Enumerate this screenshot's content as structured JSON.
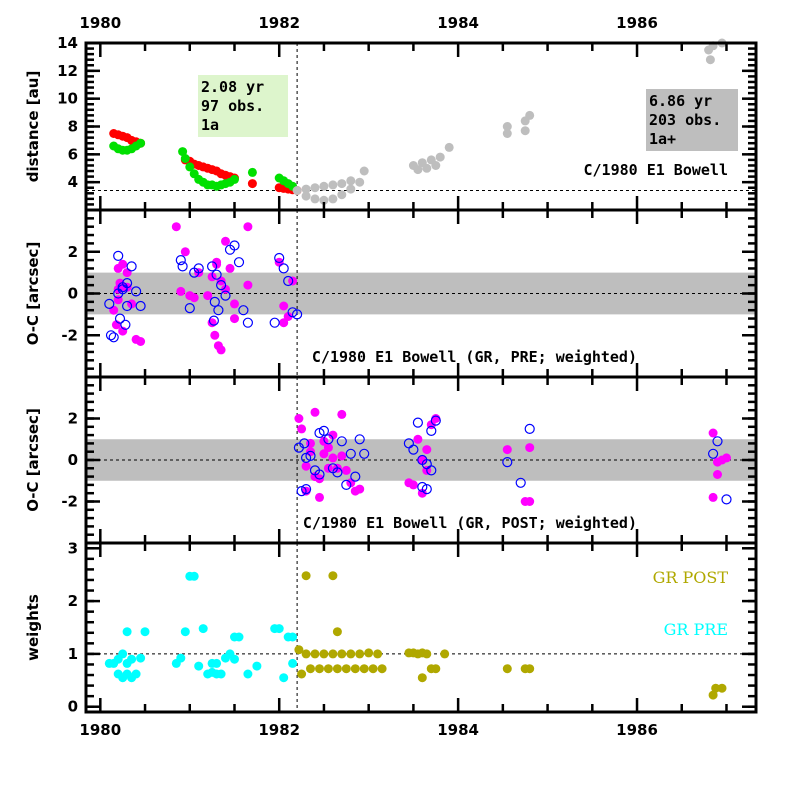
{
  "chart_data": [
    {
      "type": "scatter",
      "panel": "distance",
      "ylabel": "distance [au]",
      "xlim": [
        1979.84,
        1987.33
      ],
      "ylim": [
        2,
        14
      ],
      "x_ticks": [
        "1980",
        "1982",
        "1984",
        "1986"
      ],
      "y_ticks": [
        "4",
        "6",
        "8",
        "10",
        "12",
        "14"
      ],
      "hline": 3.4,
      "vline": 1982.2,
      "annotations": {
        "pre_box": [
          "2.08 yr",
          "97 obs.",
          "1a"
        ],
        "post_box": [
          "6.86 yr",
          "203 obs.",
          "1a+"
        ],
        "title": "C/1980 E1 Bowell"
      },
      "colors": {
        "heliocentric": "#ff0000",
        "geocentric": "#00e000",
        "post": "#bebebe",
        "pre_box": "#ddf5cc",
        "post_box": "#bebebe"
      },
      "series": [
        {
          "name": "heliocentric (pre)",
          "x": [
            1980.15,
            1980.2,
            1980.25,
            1980.3,
            1980.35,
            1980.4,
            1980.45,
            1980.95,
            1981.0,
            1981.05,
            1981.1,
            1981.15,
            1981.2,
            1981.25,
            1981.3,
            1981.35,
            1981.4,
            1981.45,
            1981.5,
            1981.7,
            1982.0,
            1982.05,
            1982.1,
            1982.15,
            1982.2
          ],
          "y": [
            7.5,
            7.4,
            7.3,
            7.2,
            7.0,
            6.9,
            6.8,
            5.6,
            5.5,
            5.3,
            5.2,
            5.1,
            5.0,
            4.9,
            4.8,
            4.6,
            4.5,
            4.4,
            4.3,
            3.9,
            3.6,
            3.55,
            3.5,
            3.45,
            3.4
          ]
        },
        {
          "name": "geocentric (pre)",
          "x": [
            1980.15,
            1980.2,
            1980.25,
            1980.3,
            1980.35,
            1980.4,
            1980.45,
            1980.92,
            1980.95,
            1981.0,
            1981.05,
            1981.1,
            1981.15,
            1981.2,
            1981.25,
            1981.3,
            1981.35,
            1981.4,
            1981.45,
            1981.5,
            1981.7,
            1982.0,
            1982.05,
            1982.1,
            1982.15
          ],
          "y": [
            6.6,
            6.4,
            6.3,
            6.3,
            6.4,
            6.6,
            6.8,
            6.2,
            5.7,
            5.1,
            4.6,
            4.2,
            4.0,
            3.8,
            3.8,
            3.7,
            3.8,
            3.9,
            4.0,
            4.2,
            4.7,
            4.3,
            4.1,
            3.9,
            3.7
          ]
        },
        {
          "name": "post",
          "x": [
            1982.2,
            1982.3,
            1982.4,
            1982.5,
            1982.6,
            1982.7,
            1982.8,
            1982.9,
            1982.95,
            1982.3,
            1982.4,
            1982.5,
            1982.6,
            1982.7,
            1982.8,
            1983.5,
            1983.6,
            1983.7,
            1983.8,
            1983.9,
            1983.55,
            1983.65,
            1983.75,
            1984.55,
            1984.75,
            1984.8,
            1984.55,
            1984.75,
            1986.8,
            1986.85,
            1986.95,
            1986.82
          ],
          "y": [
            3.4,
            3.0,
            2.8,
            2.7,
            2.8,
            3.1,
            3.5,
            4.0,
            4.8,
            3.5,
            3.6,
            3.7,
            3.8,
            3.9,
            4.1,
            5.2,
            5.4,
            5.6,
            5.8,
            6.5,
            4.9,
            5.0,
            5.2,
            8.0,
            8.4,
            8.8,
            7.5,
            7.7,
            13.5,
            13.8,
            14.0,
            12.8
          ]
        }
      ]
    },
    {
      "type": "scatter",
      "panel": "oc_pre",
      "ylabel": "O-C [arcsec]",
      "ylim": [
        -4,
        4
      ],
      "y_ticks": [
        "-2",
        "0",
        "2"
      ],
      "band": [
        -1,
        1
      ],
      "title": "C/1980 E1 Bowell (GR, PRE; weighted)",
      "colors": {
        "filled": "#ff00ff",
        "open": "#0000ff",
        "band": "#bebebe"
      },
      "series": [
        {
          "name": "RA (filled)",
          "x": [
            1980.15,
            1980.2,
            1980.25,
            1980.3,
            1980.35,
            1980.2,
            1980.25,
            1980.3,
            1980.18,
            1980.22,
            1980.28,
            1980.4,
            1980.45,
            1980.2,
            1980.85,
            1980.95,
            1980.9,
            1981.0,
            1981.05,
            1981.1,
            1981.2,
            1981.25,
            1981.3,
            1981.28,
            1981.32,
            1981.35,
            1981.4,
            1981.45,
            1981.5,
            1981.3,
            1981.25,
            1981.35,
            1981.4,
            1981.5,
            1981.65,
            1981.65,
            1982.0,
            1982.05,
            1982.1,
            1982.05,
            1982.15
          ],
          "y": [
            -0.8,
            1.2,
            1.4,
            0.3,
            -0.5,
            0.2,
            -1.8,
            1.0,
            -1.5,
            0.5,
            0.3,
            -2.2,
            -2.3,
            -0.3,
            3.2,
            2.0,
            0.1,
            -0.1,
            -0.2,
            1.0,
            -0.1,
            0.8,
            1.5,
            -2.0,
            -2.5,
            -2.7,
            2.5,
            1.2,
            -0.5,
            1.4,
            -1.4,
            0.6,
            0.2,
            -1.2,
            3.2,
            0.4,
            1.5,
            -0.6,
            -1.1,
            -1.4,
            0.6
          ]
        },
        {
          "name": "Dec (open)",
          "x": [
            1980.1,
            1980.12,
            1980.15,
            1980.2,
            1980.25,
            1980.3,
            1980.35,
            1980.22,
            1980.28,
            1980.4,
            1980.45,
            1980.2,
            1980.3,
            1980.25,
            1980.9,
            1980.92,
            1981.0,
            1981.05,
            1981.1,
            1981.25,
            1981.3,
            1981.35,
            1981.28,
            1981.4,
            1981.45,
            1981.32,
            1981.27,
            1981.5,
            1981.55,
            1981.6,
            1981.65,
            1981.95,
            1982.0,
            1982.05,
            1982.1,
            1982.15,
            1982.2
          ],
          "y": [
            -0.5,
            -2.0,
            -2.1,
            1.8,
            0.2,
            -0.6,
            1.3,
            -1.2,
            -1.5,
            0.1,
            -0.6,
            0.0,
            0.5,
            0.3,
            1.6,
            1.3,
            -0.7,
            1.0,
            1.2,
            1.3,
            0.9,
            0.4,
            -0.4,
            -0.1,
            2.1,
            -0.8,
            -1.3,
            2.3,
            1.5,
            -0.8,
            -1.4,
            -1.4,
            1.7,
            1.2,
            0.6,
            -0.9,
            -1.0
          ]
        }
      ]
    },
    {
      "type": "scatter",
      "panel": "oc_post",
      "ylabel": "O-C [arcsec]",
      "ylim": [
        -4,
        4
      ],
      "y_ticks": [
        "-2",
        "0",
        "2"
      ],
      "band": [
        -1,
        1
      ],
      "title": "C/1980 E1 Bowell (GR, POST; weighted)",
      "colors": {
        "filled": "#ff00ff",
        "open": "#0000ff",
        "band": "#bebebe"
      },
      "series": [
        {
          "name": "RA (filled)",
          "x": [
            1982.22,
            1982.25,
            1982.3,
            1982.35,
            1982.4,
            1982.45,
            1982.5,
            1982.55,
            1982.6,
            1982.65,
            1982.7,
            1982.75,
            1982.8,
            1982.85,
            1982.9,
            1982.3,
            1982.5,
            1982.6,
            1982.4,
            1982.55,
            1982.7,
            1982.35,
            1982.45,
            1983.45,
            1983.5,
            1983.55,
            1983.6,
            1983.65,
            1983.7,
            1983.75,
            1983.6,
            1983.65,
            1984.55,
            1984.8,
            1984.75,
            1984.8,
            1986.85,
            1986.9,
            1986.95,
            1987.0,
            1986.85,
            1986.9
          ],
          "y": [
            2.0,
            1.5,
            -1.5,
            0.8,
            2.3,
            -1.8,
            0.3,
            0.6,
            1.2,
            -0.4,
            2.2,
            -0.5,
            -1.1,
            -1.5,
            -1.4,
            -0.3,
            0.9,
            0.1,
            -0.8,
            -0.4,
            0.2,
            0.4,
            -0.9,
            -1.1,
            -1.2,
            1.0,
            -1.6,
            0.5,
            1.7,
            2.0,
            0.0,
            -0.5,
            0.5,
            0.6,
            -2.0,
            -2.0,
            1.3,
            -0.1,
            0.0,
            0.1,
            -1.8,
            -0.7
          ]
        },
        {
          "name": "Dec (open)",
          "x": [
            1982.22,
            1982.25,
            1982.28,
            1982.3,
            1982.35,
            1982.4,
            1982.45,
            1982.5,
            1982.55,
            1982.6,
            1982.65,
            1982.7,
            1982.75,
            1982.8,
            1982.85,
            1982.9,
            1982.95,
            1982.3,
            1982.45,
            1983.45,
            1983.5,
            1983.55,
            1983.6,
            1983.65,
            1983.7,
            1983.75,
            1983.6,
            1983.65,
            1983.7,
            1984.55,
            1984.7,
            1984.8,
            1986.85,
            1986.9,
            1987.0
          ],
          "y": [
            0.6,
            -1.5,
            0.8,
            -1.4,
            0.2,
            -0.5,
            1.3,
            1.4,
            1.0,
            -0.4,
            -0.6,
            0.9,
            -1.2,
            0.3,
            -0.8,
            1.0,
            0.3,
            0.1,
            -0.7,
            0.8,
            0.5,
            1.8,
            0.0,
            -0.2,
            -0.5,
            1.9,
            -1.3,
            -1.4,
            1.4,
            -0.1,
            -1.1,
            1.5,
            0.3,
            0.9,
            -1.9
          ]
        }
      ]
    },
    {
      "type": "scatter",
      "panel": "weights",
      "ylabel": "weights",
      "ylim": [
        -0.1,
        3.1
      ],
      "y_ticks": [
        "0",
        "1",
        "2",
        "3"
      ],
      "hline": 1,
      "legend": [
        {
          "label": "GR POST",
          "color": "#b0a800"
        },
        {
          "label": "GR PRE",
          "color": "#00ffff"
        }
      ],
      "legend_position": "top-right",
      "series": [
        {
          "name": "GR PRE",
          "color": "#00ffff",
          "x": [
            1980.1,
            1980.15,
            1980.2,
            1980.25,
            1980.3,
            1980.35,
            1980.2,
            1980.25,
            1980.3,
            1980.35,
            1980.4,
            1980.45,
            1980.3,
            1980.5,
            1980.85,
            1980.9,
            1980.95,
            1981.0,
            1981.05,
            1981.1,
            1981.15,
            1981.2,
            1981.25,
            1981.3,
            1981.35,
            1981.4,
            1981.45,
            1981.5,
            1981.25,
            1981.3,
            1981.5,
            1981.55,
            1981.65,
            1981.75,
            1981.95,
            1982.0,
            1982.05,
            1982.1,
            1982.15,
            1982.15
          ],
          "y": [
            0.82,
            0.82,
            0.9,
            1.0,
            0.82,
            0.9,
            0.62,
            0.55,
            0.62,
            0.55,
            0.62,
            0.92,
            1.42,
            1.42,
            0.82,
            0.92,
            1.42,
            2.47,
            2.47,
            0.77,
            1.48,
            0.62,
            0.82,
            0.82,
            0.62,
            0.92,
            1.0,
            1.32,
            0.65,
            0.62,
            0.9,
            1.32,
            0.62,
            0.77,
            1.48,
            1.48,
            0.55,
            1.32,
            0.82,
            1.32
          ]
        },
        {
          "name": "GR POST",
          "color": "#b0a800",
          "x": [
            1982.22,
            1982.3,
            1982.4,
            1982.5,
            1982.6,
            1982.7,
            1982.8,
            1982.9,
            1983.0,
            1983.1,
            1982.25,
            1982.35,
            1982.45,
            1982.55,
            1982.65,
            1982.75,
            1982.85,
            1982.95,
            1983.05,
            1983.15,
            1982.3,
            1982.6,
            1982.65,
            1983.45,
            1983.5,
            1983.55,
            1983.6,
            1983.65,
            1983.7,
            1983.75,
            1983.6,
            1983.85,
            1984.55,
            1984.75,
            1984.8,
            1986.85,
            1986.88,
            1986.95
          ],
          "y": [
            1.08,
            1.0,
            1.0,
            1.0,
            1.0,
            1.0,
            1.0,
            1.0,
            1.02,
            1.0,
            0.62,
            0.72,
            0.72,
            0.72,
            0.72,
            0.72,
            0.72,
            0.72,
            0.72,
            0.72,
            2.48,
            2.48,
            1.42,
            1.02,
            1.02,
            1.0,
            1.02,
            1.0,
            0.72,
            0.72,
            0.55,
            1.0,
            0.72,
            0.72,
            0.72,
            0.22,
            0.35,
            0.35
          ]
        }
      ]
    }
  ]
}
